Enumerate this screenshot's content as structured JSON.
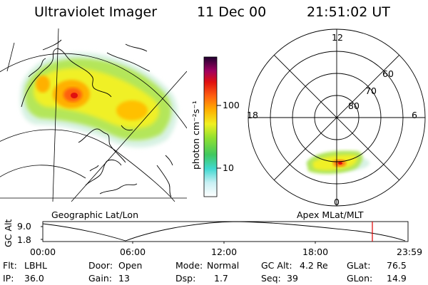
{
  "header": {
    "instrument": "Ultraviolet Imager",
    "date": "11 Dec 00",
    "time": "21:51:02 UT"
  },
  "colorbar": {
    "label": "photon cm⁻²s⁻¹",
    "ticks": [
      "100",
      "10"
    ]
  },
  "geo_panel": {
    "caption": "Geographic Lat/Lon"
  },
  "polar_panel": {
    "caption": "Apex MLat/MLT",
    "mlt_labels": [
      "12",
      "18",
      "6",
      "0"
    ],
    "lat_labels": [
      "60",
      "70",
      "80"
    ]
  },
  "altitude_strip": {
    "ylabel": "GC Alt",
    "ytick_high": "9.0",
    "ytick_low": "1.8",
    "time_ticks": [
      "00:00",
      "06:00",
      "12:00",
      "18:00",
      "23:59"
    ],
    "marker_color": "#e00000"
  },
  "info": {
    "flt_label": "Flt:",
    "flt_value": "LBHL",
    "door_label": "Door:",
    "door_value": "Open",
    "mode_label": "Mode:",
    "mode_value": "Normal",
    "gcalt_label": "GC Alt:",
    "gcalt_value": "4.2 Re",
    "glat_label": "GLat:",
    "glat_value": "76.5",
    "ip_label": "IP:",
    "ip_value": "36.0",
    "gain_label": "Gain:",
    "gain_value": "13",
    "dsp_label": "Dsp:",
    "dsp_value": "1.7",
    "seq_label": "Seq:",
    "seq_value": "39",
    "glon_label": "GLon:",
    "glon_value": "14.9"
  }
}
